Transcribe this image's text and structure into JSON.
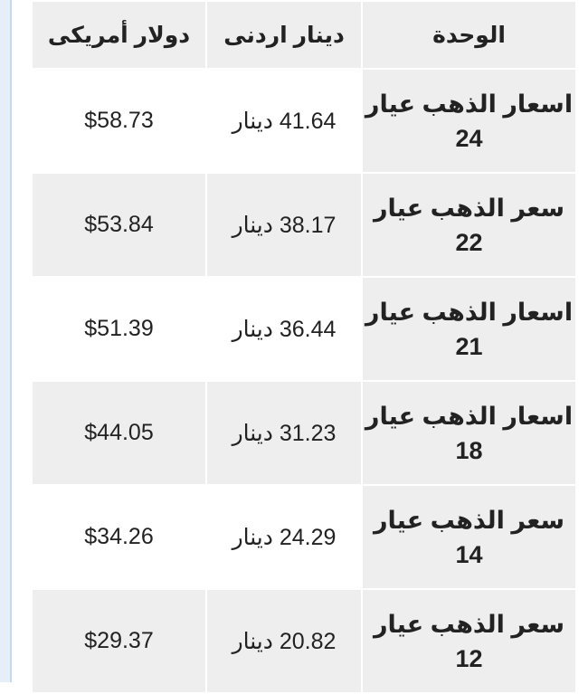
{
  "table": {
    "headers": [
      "الوحدة",
      "دينار اردنى",
      "دولار أمريكى"
    ],
    "rows": [
      {
        "unit": "اسعار الذهب عيار 24",
        "jod": "41.64 دينار",
        "usd": "$58.73"
      },
      {
        "unit": "سعر الذهب عيار 22",
        "jod": "38.17 دينار",
        "usd": "$53.84"
      },
      {
        "unit": "اسعار الذهب عيار 21",
        "jod": "36.44 دينار",
        "usd": "$51.39"
      },
      {
        "unit": "اسعار الذهب عيار 18",
        "jod": "31.23 دينار",
        "usd": "$44.05"
      },
      {
        "unit": "سعر الذهب عيار 14",
        "jod": "24.29 دينار",
        "usd": "$34.26"
      },
      {
        "unit": "سعر الذهب عيار 12",
        "jod": "20.82 دينار",
        "usd": "$29.37"
      }
    ]
  }
}
